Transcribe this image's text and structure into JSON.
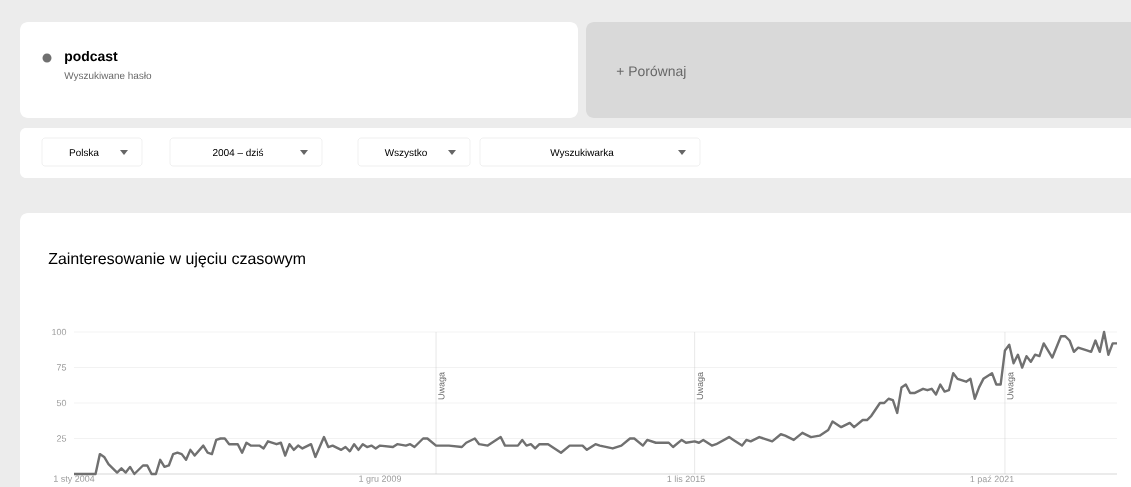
{
  "chart_data": {
    "type": "line",
    "title": "Zainteresowanie w ujęciu czasowym",
    "subtitle": "Wyszukiwane hasło",
    "annotations": [
      "+  Porównaj",
      "Polska",
      "2004 – dziś",
      "Wszystko",
      "Wyszukiwarka"
    ],
    "legend": "top left",
    "grid": "y",
    "marker": "none",
    "line_style": "solid",
    "xlim": [
      "2004-01",
      "2024-03"
    ],
    "ylim": [
      0,
      100
    ],
    "yticks": [
      25,
      50,
      75,
      100
    ],
    "xticks": [
      {
        "value": "2004-01",
        "label": "1 sty 2004"
      },
      {
        "value": "2009-12",
        "label": "1 gru 2009"
      },
      {
        "value": "2015-11",
        "label": "1 lis 2015"
      },
      {
        "value": "2021-10",
        "label": "1 paź 2021"
      }
    ],
    "ref_lines": [
      {
        "axis": "x",
        "value": "2011-01",
        "label": "Uwaga"
      },
      {
        "axis": "x",
        "value": "2016-01",
        "label": "Uwaga"
      },
      {
        "axis": "x",
        "value": "2022-01",
        "label": "Uwaga"
      }
    ],
    "x": [
      "2004-01",
      "2004-06",
      "2004-07",
      "2004-08",
      "2004-09",
      "2004-11",
      "2004-12",
      "2005-01",
      "2005-02",
      "2005-03",
      "2005-05",
      "2005-06",
      "2005-07",
      "2005-08",
      "2005-09",
      "2005-10",
      "2005-11",
      "2005-12",
      "2006-01",
      "2006-02",
      "2006-03",
      "2006-04",
      "2006-05",
      "2006-07",
      "2006-08",
      "2006-09",
      "2006-10",
      "2006-11",
      "2006-12",
      "2007-01",
      "2007-03",
      "2007-04",
      "2007-05",
      "2007-06",
      "2007-08",
      "2007-09",
      "2007-10",
      "2007-12",
      "2008-01",
      "2008-02",
      "2008-03",
      "2008-04",
      "2008-05",
      "2008-06",
      "2008-08",
      "2008-09",
      "2008-11",
      "2008-12",
      "2009-01",
      "2009-03",
      "2009-04",
      "2009-05",
      "2009-06",
      "2009-07",
      "2009-08",
      "2009-09",
      "2009-10",
      "2009-11",
      "2009-12",
      "2010-03",
      "2010-04",
      "2010-06",
      "2010-07",
      "2010-08",
      "2010-10",
      "2010-11",
      "2011-01",
      "2011-03",
      "2011-04",
      "2011-07",
      "2011-08",
      "2011-10",
      "2011-11",
      "2012-01",
      "2012-04",
      "2012-05",
      "2012-08",
      "2012-09",
      "2012-10",
      "2012-11",
      "2012-12",
      "2013-01",
      "2013-03",
      "2013-06",
      "2013-08",
      "2013-11",
      "2013-12",
      "2014-02",
      "2014-03",
      "2014-06",
      "2014-08",
      "2014-10",
      "2014-11",
      "2015-01",
      "2015-02",
      "2015-04",
      "2015-07",
      "2015-08",
      "2015-10",
      "2015-11",
      "2016-01",
      "2016-02",
      "2016-03",
      "2016-05",
      "2016-06",
      "2016-09",
      "2016-10",
      "2016-12",
      "2017-01",
      "2017-02",
      "2017-04",
      "2017-07",
      "2017-09",
      "2017-10",
      "2017-12",
      "2018-02",
      "2018-04",
      "2018-06",
      "2018-08",
      "2018-09",
      "2018-11",
      "2019-01",
      "2019-02",
      "2019-04",
      "2019-05",
      "2019-06",
      "2019-08",
      "2019-09",
      "2019-10",
      "2019-11",
      "2019-12",
      "2020-01",
      "2020-02",
      "2020-03",
      "2020-04",
      "2020-06",
      "2020-07",
      "2020-08",
      "2020-09",
      "2020-10",
      "2020-11",
      "2020-12",
      "2021-01",
      "2021-02",
      "2021-04",
      "2021-05",
      "2021-06",
      "2021-07",
      "2021-08",
      "2021-10",
      "2021-11",
      "2021-12",
      "2022-01",
      "2022-02",
      "2022-03",
      "2022-04",
      "2022-05",
      "2022-06",
      "2022-07",
      "2022-08",
      "2022-09",
      "2022-10",
      "2022-12",
      "2023-02",
      "2023-03",
      "2023-04",
      "2023-05",
      "2023-06",
      "2023-08",
      "2023-09",
      "2023-10",
      "2023-11",
      "2023-12",
      "2024-01",
      "2024-02",
      "2024-03"
    ],
    "series": [
      {
        "name": "podcast",
        "color": "#707070",
        "values": [
          0,
          0,
          14,
          12,
          7,
          1,
          4,
          1,
          5,
          0,
          6,
          6,
          0,
          0,
          10,
          5,
          6,
          14,
          15,
          14,
          10,
          17,
          13,
          20,
          15,
          14,
          24,
          25,
          25,
          21,
          21,
          15,
          22,
          20,
          20,
          18,
          23,
          21,
          22,
          13,
          21,
          17,
          20,
          18,
          21,
          12,
          26,
          19,
          20,
          17,
          19,
          16,
          21,
          17,
          21,
          19,
          20,
          18,
          20,
          19,
          21,
          20,
          21,
          19,
          25,
          25,
          20,
          20,
          20,
          19,
          22,
          25,
          21,
          20,
          26,
          20,
          20,
          24,
          20,
          21,
          18,
          21,
          21,
          15,
          20,
          20,
          17,
          21,
          20,
          18,
          20,
          25,
          25,
          20,
          24,
          22,
          22,
          19,
          24,
          22,
          23,
          22,
          24,
          20,
          21,
          26,
          24,
          20,
          24,
          23,
          26,
          23,
          28,
          27,
          24,
          29,
          26,
          27,
          31,
          37,
          33,
          36,
          33,
          38,
          38,
          41,
          50,
          50,
          53,
          52,
          43,
          61,
          63,
          57,
          57,
          60,
          59,
          60,
          56,
          63,
          58,
          59,
          71,
          67,
          65,
          67,
          53,
          61,
          67,
          71,
          63,
          63,
          87,
          91,
          78,
          84,
          75,
          83,
          79,
          84,
          83,
          92,
          82,
          97,
          97,
          94,
          86,
          89,
          87,
          86,
          94,
          86,
          100,
          84,
          92,
          92
        ]
      }
    ]
  }
}
